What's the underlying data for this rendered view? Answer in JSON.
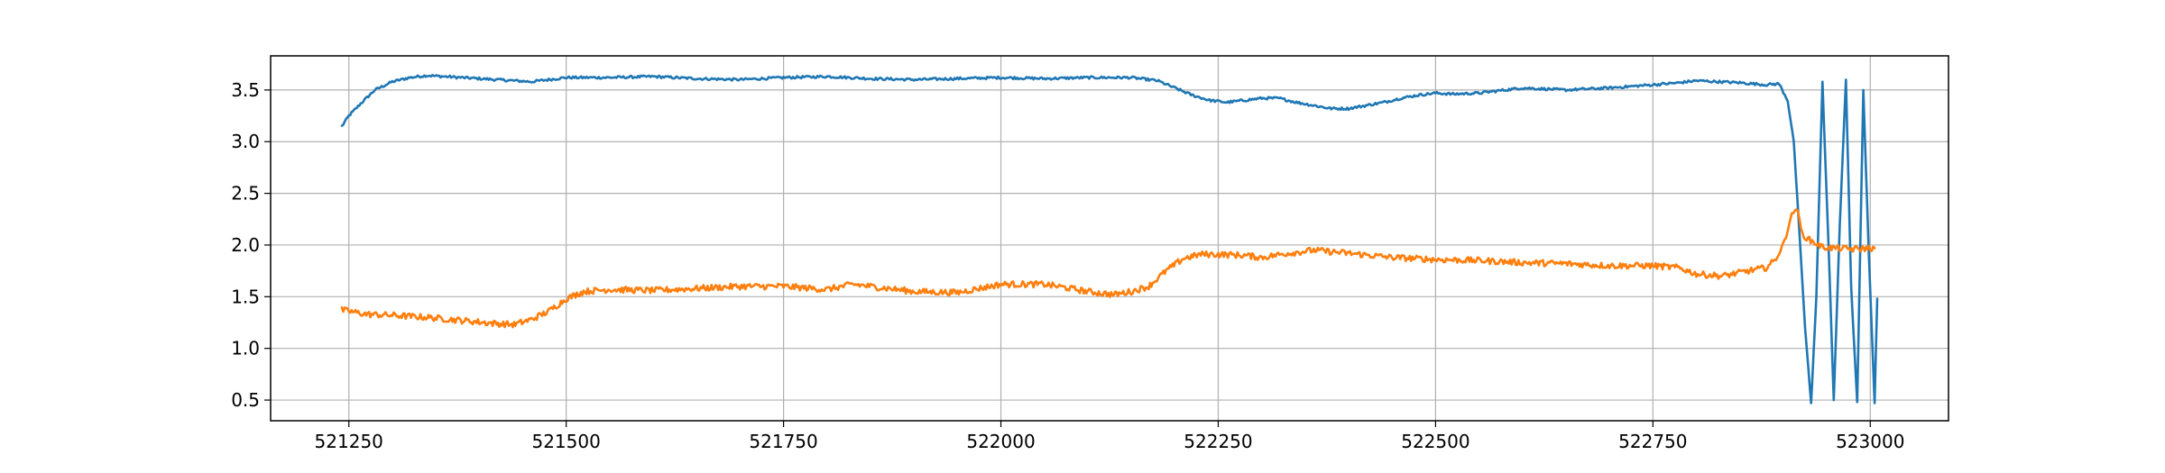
{
  "chart_data": {
    "type": "line",
    "title": "",
    "xlabel": "",
    "ylabel": "",
    "xlim": [
      521160,
      523090
    ],
    "ylim": [
      0.3,
      3.83
    ],
    "grid": true,
    "legend": "none",
    "x_ticks": [
      {
        "value": 521250,
        "label": "521250"
      },
      {
        "value": 521500,
        "label": "521500"
      },
      {
        "value": 521750,
        "label": "521750"
      },
      {
        "value": 522000,
        "label": "522000"
      },
      {
        "value": 522250,
        "label": "522250"
      },
      {
        "value": 522500,
        "label": "522500"
      },
      {
        "value": 522750,
        "label": "522750"
      },
      {
        "value": 523000,
        "label": "523000"
      }
    ],
    "y_ticks": [
      {
        "value": 0.5,
        "label": "0.5"
      },
      {
        "value": 1.0,
        "label": "1.0"
      },
      {
        "value": 1.5,
        "label": "1.5"
      },
      {
        "value": 2.0,
        "label": "2.0"
      },
      {
        "value": 2.5,
        "label": "2.5"
      },
      {
        "value": 3.0,
        "label": "3.0"
      },
      {
        "value": 3.5,
        "label": "3.5"
      }
    ],
    "series": [
      {
        "color": "#1f77b4",
        "noise": 0.012,
        "x": [
          521242,
          521250,
          521265,
          521280,
          521300,
          521320,
          521340,
          521380,
          521420,
          521460,
          521500,
          521550,
          521600,
          521650,
          521700,
          521750,
          521800,
          521850,
          521900,
          521950,
          522000,
          522050,
          522100,
          522150,
          522180,
          522200,
          522220,
          522240,
          522260,
          522280,
          522300,
          522320,
          522340,
          522360,
          522380,
          522400,
          522420,
          522440,
          522460,
          522480,
          522500,
          522520,
          522550,
          522580,
          522600,
          522650,
          522700,
          522750,
          522780,
          522800,
          522850,
          522880,
          522895,
          522905,
          522912,
          522918,
          522925,
          522932,
          522938,
          522945,
          522952,
          522958,
          522965,
          522972,
          522978,
          522985,
          522992,
          522998,
          523005,
          523008
        ],
        "y": [
          3.15,
          3.25,
          3.38,
          3.5,
          3.58,
          3.62,
          3.64,
          3.62,
          3.6,
          3.58,
          3.62,
          3.62,
          3.63,
          3.61,
          3.6,
          3.62,
          3.63,
          3.61,
          3.6,
          3.61,
          3.62,
          3.61,
          3.62,
          3.62,
          3.59,
          3.52,
          3.45,
          3.4,
          3.38,
          3.4,
          3.42,
          3.42,
          3.38,
          3.35,
          3.32,
          3.32,
          3.35,
          3.38,
          3.42,
          3.45,
          3.47,
          3.46,
          3.47,
          3.5,
          3.52,
          3.5,
          3.52,
          3.55,
          3.57,
          3.59,
          3.57,
          3.55,
          3.56,
          3.4,
          3.0,
          2.2,
          1.2,
          0.47,
          1.5,
          3.58,
          2.0,
          0.5,
          2.2,
          3.6,
          1.6,
          0.48,
          3.5,
          2.0,
          0.47,
          1.48
        ]
      },
      {
        "color": "#ff7f0e",
        "noise": 0.03,
        "x": [
          521242,
          521250,
          521270,
          521300,
          521340,
          521380,
          521420,
          521440,
          521460,
          521480,
          521500,
          521520,
          521550,
          521600,
          521650,
          521700,
          521750,
          521800,
          521830,
          521850,
          521900,
          521950,
          522000,
          522050,
          522080,
          522100,
          522130,
          522150,
          522170,
          522190,
          522210,
          522230,
          522250,
          522280,
          522300,
          522330,
          522360,
          522400,
          522450,
          522500,
          522550,
          522600,
          522650,
          522700,
          522750,
          522780,
          522800,
          522830,
          522860,
          522880,
          522890,
          522900,
          522908,
          522915,
          522922,
          522930,
          522945,
          522960,
          522980,
          523000,
          523005
        ],
        "y": [
          1.37,
          1.36,
          1.33,
          1.32,
          1.3,
          1.27,
          1.24,
          1.23,
          1.28,
          1.36,
          1.48,
          1.55,
          1.57,
          1.56,
          1.58,
          1.6,
          1.6,
          1.57,
          1.62,
          1.6,
          1.55,
          1.54,
          1.62,
          1.62,
          1.58,
          1.55,
          1.52,
          1.55,
          1.6,
          1.75,
          1.87,
          1.91,
          1.91,
          1.9,
          1.88,
          1.92,
          1.95,
          1.92,
          1.88,
          1.86,
          1.85,
          1.83,
          1.82,
          1.8,
          1.8,
          1.78,
          1.72,
          1.7,
          1.75,
          1.78,
          1.85,
          2.0,
          2.25,
          2.37,
          2.1,
          2.05,
          1.98,
          1.97,
          1.96,
          1.97,
          1.97
        ]
      }
    ]
  }
}
